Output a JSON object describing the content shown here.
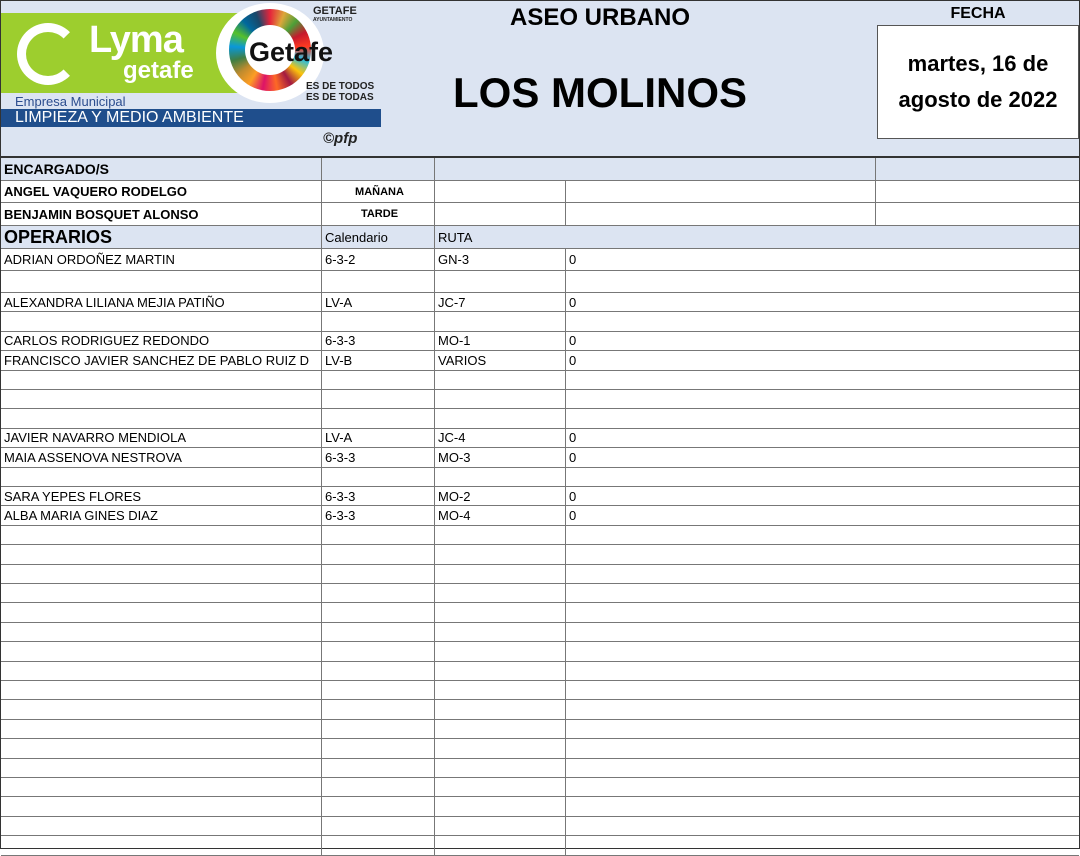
{
  "header": {
    "logo_text": "LYMA getafe",
    "sdg_logo_text": "Getafe",
    "slogan_1": "ES DE TODOS",
    "slogan_2": "ES DE TODAS",
    "ayuntamiento": "GETAFE",
    "ayuntamiento_sub": "AYUNTAMIENTO",
    "empresa": "Empresa Municipal",
    "empresa_bar": "LIMPIEZA Y MEDIO AMBIENTE",
    "copyright": "©pfp",
    "title": "ASEO URBANO",
    "zone": "LOS MOLINOS",
    "fecha_label": "FECHA",
    "fecha": "martes, 16 de agosto de 2022"
  },
  "encargados": {
    "label": "ENCARGADO/S",
    "rows": [
      {
        "name": "ANGEL VAQUERO RODELGO",
        "turno": "MAÑANA"
      },
      {
        "name": "BENJAMIN BOSQUET ALONSO",
        "turno": "TARDE"
      }
    ]
  },
  "operarios": {
    "label": "OPERARIOS",
    "col_calendario": "Calendario",
    "col_ruta": "RUTA",
    "rows": [
      {
        "name": "ADRIAN ORDOÑEZ MARTIN",
        "cal": "6-3-2",
        "ruta": "GN-3",
        "val": "0"
      },
      {
        "name": "",
        "cal": "",
        "ruta": "",
        "val": ""
      },
      {
        "name": "ALEXANDRA LILIANA MEJIA PATIÑO",
        "cal": "LV-A",
        "ruta": "JC-7",
        "val": "0"
      },
      {
        "name": "",
        "cal": "",
        "ruta": "",
        "val": ""
      },
      {
        "name": "CARLOS RODRIGUEZ REDONDO",
        "cal": "6-3-3",
        "ruta": "MO-1",
        "val": "0"
      },
      {
        "name": "FRANCISCO JAVIER SANCHEZ DE PABLO RUIZ D",
        "cal": "LV-B",
        "ruta": "VARIOS",
        "val": "0"
      },
      {
        "name": "",
        "cal": "",
        "ruta": "",
        "val": ""
      },
      {
        "name": "",
        "cal": "",
        "ruta": "",
        "val": ""
      },
      {
        "name": "",
        "cal": "",
        "ruta": "",
        "val": ""
      },
      {
        "name": "JAVIER NAVARRO MENDIOLA",
        "cal": "LV-A",
        "ruta": "JC-4",
        "val": "0"
      },
      {
        "name": "MAIA ASSENOVA NESTROVA",
        "cal": "6-3-3",
        "ruta": "MO-3",
        "val": "0"
      },
      {
        "name": "",
        "cal": "",
        "ruta": "",
        "val": ""
      },
      {
        "name": "SARA YEPES FLORES",
        "cal": "6-3-3",
        "ruta": "MO-2",
        "val": "0"
      },
      {
        "name": "ALBA MARIA GINES DIAZ",
        "cal": "6-3-3",
        "ruta": "MO-4",
        "val": "0"
      }
    ]
  }
}
